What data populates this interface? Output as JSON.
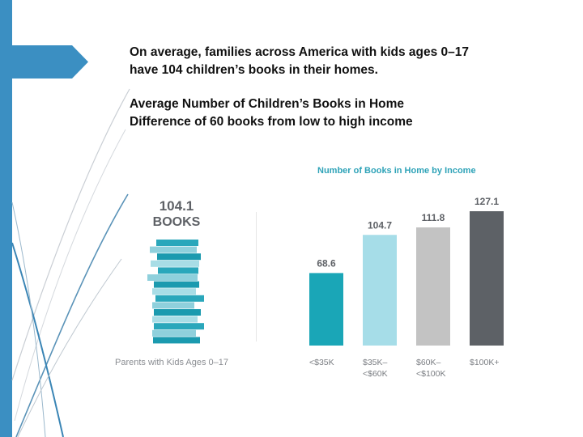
{
  "headline": {
    "line1": "On average, families across America with kids ages 0–17",
    "line2": "have 104 children’s books in their homes.",
    "line3": "Average Number of Children’s Books in Home",
    "line4": "Difference of 60 books from low to high income"
  },
  "stack": {
    "count": "104.1",
    "unit": "BOOKS",
    "caption": "Parents with Kids Ages 0–17",
    "colors": [
      "#2aa7bb",
      "#8fd0dc",
      "#1b9aaf",
      "#a8dde6"
    ]
  },
  "chart_data": {
    "type": "bar",
    "title": "Number of Books in Home by Income",
    "categories": [
      [
        "<$35K"
      ],
      [
        "$35K–",
        "<$60K"
      ],
      [
        "$60K–",
        "<$100K"
      ],
      [
        "$100K+"
      ]
    ],
    "values": [
      68.6,
      104.7,
      111.8,
      127.1
    ],
    "value_labels": [
      "68.6",
      "104.7",
      "111.8",
      "127.1"
    ],
    "colors": [
      "#1aa6b7",
      "#a6dde8",
      "#c3c3c3",
      "#5d6166"
    ],
    "ylim": [
      0,
      127.1
    ],
    "xlabel": "",
    "ylabel": ""
  }
}
